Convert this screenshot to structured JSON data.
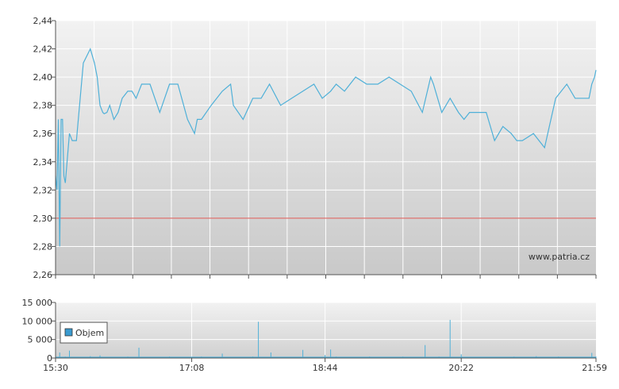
{
  "watermark": "www.patria.cz",
  "colors": {
    "price_line": "#4fb0d8",
    "reference_line": "#d9534f",
    "volume_bars": "#4fb0d8",
    "legend_swatch": "#3a9bd0"
  },
  "chart_data": [
    {
      "type": "line",
      "name": "price",
      "ylim": [
        2.26,
        2.44
      ],
      "yticks": [
        "2,44",
        "2,42",
        "2,40",
        "2,38",
        "2,36",
        "2,34",
        "2,32",
        "2,30",
        "2,28",
        "2,26"
      ],
      "ytick_values": [
        2.44,
        2.42,
        2.4,
        2.38,
        2.36,
        2.34,
        2.32,
        2.3,
        2.28,
        2.26
      ],
      "reference_value": 2.3,
      "xlim": [
        "15:30",
        "21:59"
      ],
      "grid": true,
      "series": [
        {
          "x": [
            "15:30",
            "15:31",
            "15:32",
            "15:33",
            "15:34",
            "15:35",
            "15:36",
            "15:37",
            "15:40",
            "15:42",
            "15:45",
            "15:50",
            "15:55",
            "15:58",
            "16:00",
            "16:02",
            "16:04",
            "16:05",
            "16:07",
            "16:09",
            "16:12",
            "16:15",
            "16:18",
            "16:22",
            "16:25",
            "16:28",
            "16:32",
            "16:38",
            "16:45",
            "16:52",
            "16:58",
            "17:05",
            "17:10",
            "17:12",
            "17:15",
            "17:22",
            "17:30",
            "17:36",
            "17:38",
            "17:45",
            "17:52",
            "17:58",
            "18:04",
            "18:12",
            "18:20",
            "18:28",
            "18:36",
            "18:42",
            "18:48",
            "18:52",
            "18:58",
            "19:06",
            "19:14",
            "19:22",
            "19:30",
            "19:38",
            "19:46",
            "19:54",
            "20:00",
            "20:02",
            "20:08",
            "20:14",
            "20:20",
            "20:24",
            "20:28",
            "20:34",
            "20:40",
            "20:46",
            "20:52",
            "20:58",
            "21:02",
            "21:06",
            "21:14",
            "21:22",
            "21:30",
            "21:38",
            "21:44",
            "21:50",
            "21:54",
            "21:56",
            "21:58",
            "21:59"
          ],
          "y": [
            2.33,
            2.32,
            2.37,
            2.28,
            2.37,
            2.37,
            2.33,
            2.325,
            2.36,
            2.355,
            2.355,
            2.41,
            2.42,
            2.41,
            2.4,
            2.38,
            2.375,
            2.374,
            2.375,
            2.38,
            2.37,
            2.375,
            2.385,
            2.39,
            2.39,
            2.385,
            2.395,
            2.395,
            2.375,
            2.395,
            2.395,
            2.37,
            2.36,
            2.37,
            2.37,
            2.38,
            2.39,
            2.395,
            2.38,
            2.37,
            2.385,
            2.385,
            2.395,
            2.38,
            2.385,
            2.39,
            2.395,
            2.385,
            2.39,
            2.395,
            2.39,
            2.4,
            2.395,
            2.395,
            2.4,
            2.395,
            2.39,
            2.375,
            2.4,
            2.395,
            2.375,
            2.385,
            2.375,
            2.37,
            2.375,
            2.375,
            2.375,
            2.355,
            2.365,
            2.36,
            2.355,
            2.355,
            2.36,
            2.35,
            2.385,
            2.395,
            2.385,
            2.385,
            2.385,
            2.395,
            2.4,
            2.405
          ]
        }
      ]
    },
    {
      "type": "bar",
      "name": "volume",
      "ylim": [
        0,
        15000
      ],
      "yticks": [
        "15 000",
        "10 000",
        "5 000",
        "0"
      ],
      "ytick_values": [
        15000,
        10000,
        5000,
        0
      ],
      "xticks": [
        "15:30",
        "17:08",
        "18:44",
        "20:22",
        "21:59"
      ],
      "legend": {
        "label": "Objem",
        "placement": "left"
      },
      "series": [
        {
          "name": "Objem",
          "x": [
            "15:30",
            "15:33",
            "15:37",
            "15:40",
            "15:48",
            "15:55",
            "16:02",
            "16:08",
            "16:15",
            "16:22",
            "16:30",
            "16:38",
            "16:45",
            "16:52",
            "17:00",
            "17:08",
            "17:15",
            "17:22",
            "17:30",
            "17:38",
            "17:45",
            "17:52",
            "17:56",
            "18:00",
            "18:05",
            "18:12",
            "18:20",
            "18:28",
            "18:36",
            "18:44",
            "18:48",
            "18:52",
            "19:00",
            "19:08",
            "19:16",
            "19:24",
            "19:32",
            "19:40",
            "19:48",
            "19:56",
            "20:00",
            "20:06",
            "20:14",
            "20:22",
            "20:30",
            "20:38",
            "20:46",
            "20:54",
            "21:00",
            "21:08",
            "21:16",
            "21:24",
            "21:32",
            "21:40",
            "21:48",
            "21:56",
            "21:59"
          ],
          "values": [
            600,
            1500,
            400,
            2000,
            300,
            500,
            700,
            300,
            300,
            400,
            2800,
            200,
            300,
            400,
            300,
            200,
            400,
            300,
            1200,
            300,
            200,
            400,
            9800,
            300,
            1500,
            300,
            200,
            2200,
            300,
            800,
            2300,
            400,
            300,
            300,
            400,
            300,
            300,
            400,
            300,
            3500,
            300,
            400,
            10300,
            1000,
            300,
            200,
            300,
            200,
            400,
            300,
            500,
            300,
            400,
            300,
            200,
            1400,
            400
          ]
        }
      ]
    }
  ]
}
